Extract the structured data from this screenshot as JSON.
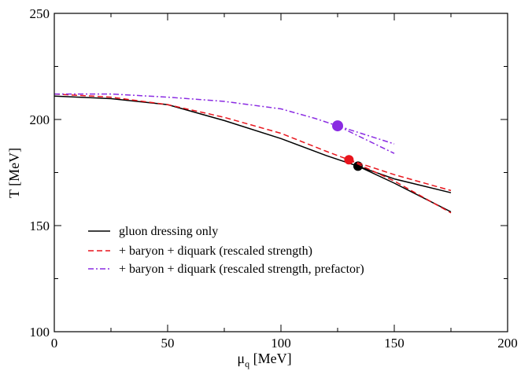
{
  "chart_data": {
    "type": "line",
    "xlabel": "μ",
    "xlabel_sub": "q",
    "xlabel_unit": " [MeV]",
    "ylabel": "T [MeV]",
    "xlim": [
      0,
      200
    ],
    "ylim": [
      100,
      250
    ],
    "x_ticks": [
      0,
      50,
      100,
      150,
      200
    ],
    "y_ticks": [
      100,
      150,
      200,
      250
    ],
    "x_tick_labels": [
      "0",
      "50",
      "100",
      "150",
      "200"
    ],
    "y_tick_labels": [
      "100",
      "150",
      "200",
      "250"
    ],
    "grid": false,
    "legend_position": "lower-left",
    "series": [
      {
        "name": "gluon dressing only",
        "color": "#000000",
        "dash": "solid",
        "points": [
          [
            0,
            211
          ],
          [
            25,
            209.8
          ],
          [
            50,
            207
          ],
          [
            75,
            199.5
          ],
          [
            100,
            191
          ],
          [
            120,
            183
          ],
          [
            134,
            178
          ]
        ],
        "branches": [
          [
            [
              134,
              178
            ],
            [
              150,
              172
            ],
            [
              175,
              165.5
            ]
          ],
          [
            [
              134,
              178
            ],
            [
              150,
              170
            ],
            [
              175,
              156.5
            ]
          ]
        ],
        "critical_point": [
          134,
          178
        ]
      },
      {
        "name": "+ baryon + diquark (rescaled strength)",
        "color": "#e8141c",
        "dash": "dash",
        "points": [
          [
            0,
            212
          ],
          [
            25,
            210.5
          ],
          [
            50,
            207
          ],
          [
            75,
            201
          ],
          [
            100,
            193.5
          ],
          [
            120,
            185
          ],
          [
            130,
            181
          ]
        ],
        "branches": [
          [
            [
              130,
              181
            ],
            [
              150,
              174
            ],
            [
              175,
              166.5
            ]
          ],
          [
            [
              130,
              181
            ],
            [
              150,
              171
            ],
            [
              175,
              156
            ]
          ]
        ],
        "critical_point": [
          130,
          181
        ]
      },
      {
        "name": "+ baryon + diquark (rescaled strength, prefactor)",
        "color": "#8a2be2",
        "dash": "dashdot",
        "points": [
          [
            0,
            212
          ],
          [
            25,
            212
          ],
          [
            50,
            210.5
          ],
          [
            75,
            208.5
          ],
          [
            100,
            205
          ],
          [
            115,
            200.5
          ],
          [
            125,
            197
          ]
        ],
        "branches": [
          [
            [
              125,
              197
            ],
            [
              150,
              188.5
            ]
          ],
          [
            [
              125,
              197
            ],
            [
              150,
              184
            ]
          ]
        ],
        "critical_point": [
          125,
          197
        ]
      }
    ]
  }
}
